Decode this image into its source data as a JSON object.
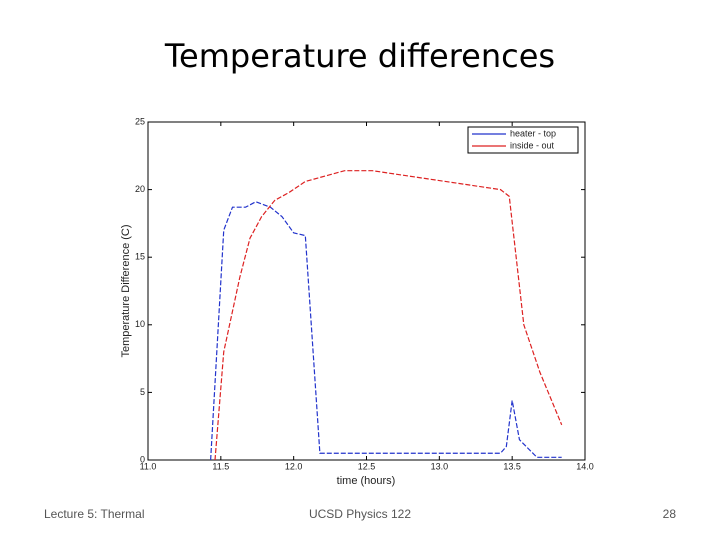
{
  "footer": {
    "left": "Lecture 5: Thermal",
    "center": "UCSD Physics 122",
    "right": "28"
  },
  "chart_data": {
    "type": "line",
    "title": "Temperature differences",
    "xlabel": "time (hours)",
    "ylabel": "Temperature Difference (C)",
    "xlim": [
      11,
      14
    ],
    "ylim": [
      0,
      25
    ],
    "xticks": [
      {
        "value": 11,
        "label": "11.0"
      },
      11.5,
      {
        "value": 12,
        "label": "12.0"
      },
      12.5,
      {
        "value": 13,
        "label": "13.0"
      },
      13.5,
      {
        "value": 14,
        "label": "14.0"
      }
    ],
    "yticks": [
      0,
      5,
      10,
      15,
      20,
      25
    ],
    "legend": "upper right",
    "series": [
      {
        "name": "heater - top",
        "color": "#2233cc",
        "x": [
          11.43,
          11.52,
          11.58,
          11.67,
          11.74,
          11.84,
          11.92,
          12.0,
          12.08,
          12.18,
          13.42,
          13.46,
          13.5,
          13.55,
          13.67,
          13.84
        ],
        "values": [
          0,
          17,
          18.7,
          18.7,
          19.1,
          18.7,
          18,
          16.8,
          16.6,
          0.5,
          0.5,
          1,
          4.4,
          1.5,
          0.2,
          0.2
        ]
      },
      {
        "name": "inside - out",
        "color": "#dd2222",
        "x": [
          11.46,
          11.52,
          11.58,
          11.63,
          11.7,
          11.78,
          11.87,
          11.97,
          12.08,
          12.35,
          12.54,
          13.42,
          13.48,
          13.58,
          13.69,
          13.84
        ],
        "values": [
          0,
          8,
          11,
          13.5,
          16.4,
          18,
          19.2,
          19.8,
          20.6,
          21.4,
          21.4,
          20,
          19.5,
          10,
          6.5,
          2.6
        ]
      }
    ]
  }
}
